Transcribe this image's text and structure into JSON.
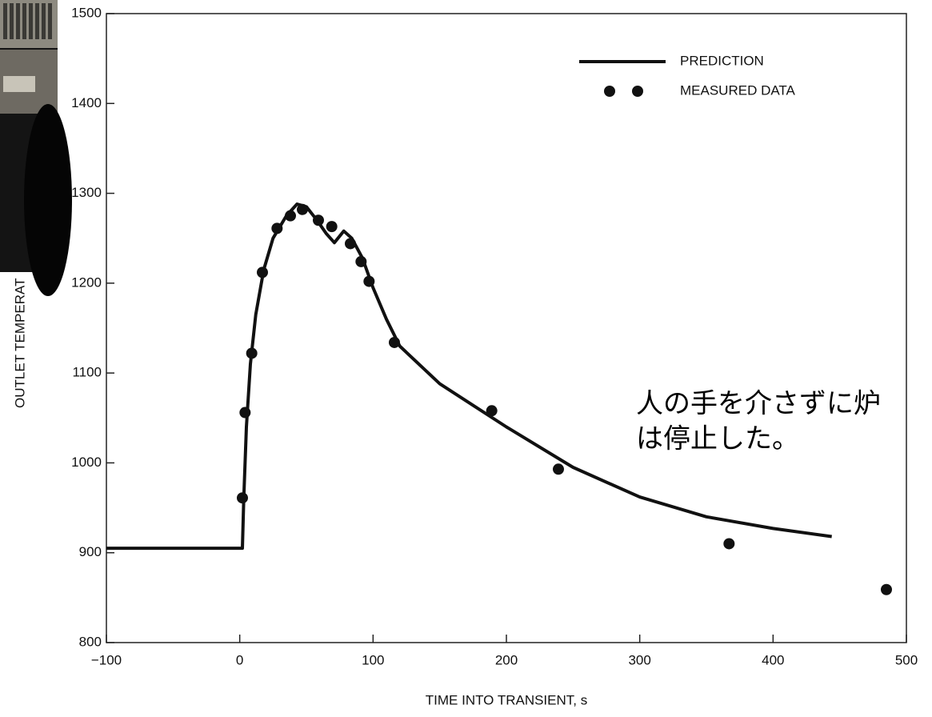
{
  "chart_data": {
    "type": "line",
    "xlabel": "TIME INTO TRANSIENT, s",
    "ylabel": "OUTLET TEMPERAT",
    "xlim": [
      -100,
      500
    ],
    "ylim": [
      800,
      1500
    ],
    "xticks": [
      {
        "value": -100,
        "label": "−100"
      },
      0,
      100,
      200,
      300,
      400,
      500
    ],
    "yticks": [
      800,
      900,
      1000,
      1100,
      1200,
      1300,
      1400,
      1500
    ],
    "legend": "upper right",
    "series": [
      {
        "name": "PREDICTION",
        "color": "#111111",
        "marker": "none",
        "x": [
          -100,
          2,
          3,
          5,
          8,
          12,
          18,
          25,
          35,
          43,
          50,
          58,
          65,
          71,
          78,
          84,
          92,
          100,
          110,
          120,
          150,
          200,
          250,
          300,
          350,
          400,
          444
        ],
        "values": [
          905,
          905,
          960,
          1040,
          1110,
          1165,
          1215,
          1250,
          1275,
          1288,
          1285,
          1270,
          1255,
          1245,
          1258,
          1250,
          1228,
          1195,
          1160,
          1130,
          1088,
          1040,
          995,
          962,
          940,
          927,
          918
        ]
      },
      {
        "name": "MEASURED DATA",
        "color": "#111111",
        "marker": "circle",
        "x": [
          2,
          4,
          9,
          17,
          28,
          38,
          47,
          59,
          69,
          83,
          91,
          97,
          116,
          189,
          239,
          367,
          485
        ],
        "values": [
          961,
          1056,
          1122,
          1212,
          1261,
          1275,
          1282,
          1270,
          1263,
          1244,
          1224,
          1202,
          1134,
          1058,
          993,
          910,
          859
        ]
      }
    ],
    "annotations": [
      "人の手を介さずに炉",
      "は停止した。"
    ]
  }
}
